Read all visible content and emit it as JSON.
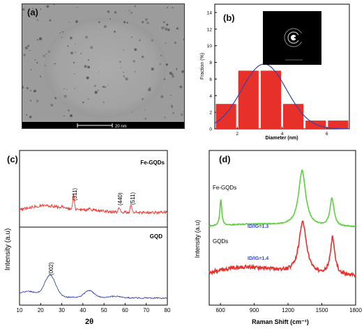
{
  "panel_a": {
    "label": "(a)",
    "scale_bar": "20 nm",
    "colors": {
      "background": "#9a9a9a",
      "border": "#222222",
      "bar": "#000000"
    }
  },
  "panel_b": {
    "label": "(b)",
    "colors": {
      "bar": "#e8302a",
      "fit": "#3344aa",
      "inset_bg": "#000000"
    }
  },
  "panel_c": {
    "label": "(c)",
    "series_labels": [
      "Fe-GQDs",
      "GQD"
    ],
    "peak_labels": [
      "(311)",
      "(440)",
      "(511)",
      "(002)"
    ],
    "colors": {
      "fe_gqds": "#e8302a",
      "gqd": "#3344aa"
    }
  },
  "panel_d": {
    "label": "(d)",
    "series_labels": [
      "Fe-GQDs",
      "GQDs"
    ],
    "ratio_labels": [
      "ID/IG=1.3",
      "ID/IG=1.4"
    ],
    "colors": {
      "fe_gqds": "#5fcf3f",
      "gqds": "#e8302a",
      "ratio_text": "#3344cc"
    }
  },
  "chart_data": [
    {
      "type": "bar",
      "panel": "b",
      "title": "",
      "xlabel": "Diameter (nm)",
      "ylabel": "Fraction (%)",
      "xlim": [
        1,
        7
      ],
      "ylim": [
        0,
        15
      ],
      "xticks": [
        2,
        4,
        6
      ],
      "yticks": [
        0,
        2,
        4,
        6,
        8,
        10,
        12,
        14
      ],
      "categories": [
        1.5,
        2.5,
        3.5,
        4.5,
        5.5,
        6.5
      ],
      "values": [
        3,
        7,
        7,
        3,
        1,
        1
      ],
      "fit": {
        "type": "gaussian",
        "peak_x": 3.2,
        "peak_y": 7.8,
        "sigma": 1.0
      }
    },
    {
      "type": "line",
      "panel": "c",
      "title": "",
      "xlabel": "2θ",
      "ylabel": "Intensity (a.u)",
      "xlim": [
        10,
        80
      ],
      "xticks": [
        10,
        20,
        30,
        40,
        50,
        60,
        70,
        80
      ],
      "series": [
        {
          "name": "Fe-GQDs",
          "peaks": [
            {
              "x": 35.6,
              "label": "(311)"
            },
            {
              "x": 57.1,
              "label": "(440)"
            },
            {
              "x": 62.8,
              "label": "(511)"
            }
          ]
        },
        {
          "name": "GQD",
          "peaks": [
            {
              "x": 24.5,
              "label": "(002)"
            },
            {
              "x": 43
            }
          ]
        }
      ]
    },
    {
      "type": "line",
      "panel": "d",
      "title": "",
      "xlabel": "Raman Shift (cm⁻¹)",
      "ylabel": "Intensity (a.u)",
      "xlim": [
        500,
        1800
      ],
      "xticks": [
        600,
        900,
        1200,
        1500,
        1800
      ],
      "series": [
        {
          "name": "Fe-GQDs",
          "peaks": [
            {
              "x": 600
            },
            {
              "x": 1330
            },
            {
              "x": 1590
            }
          ],
          "ratio": "ID/IG=1.3"
        },
        {
          "name": "GQDs",
          "peaks": [
            {
              "x": 1330
            },
            {
              "x": 1590
            }
          ],
          "ratio": "ID/IG=1.4"
        }
      ]
    }
  ]
}
